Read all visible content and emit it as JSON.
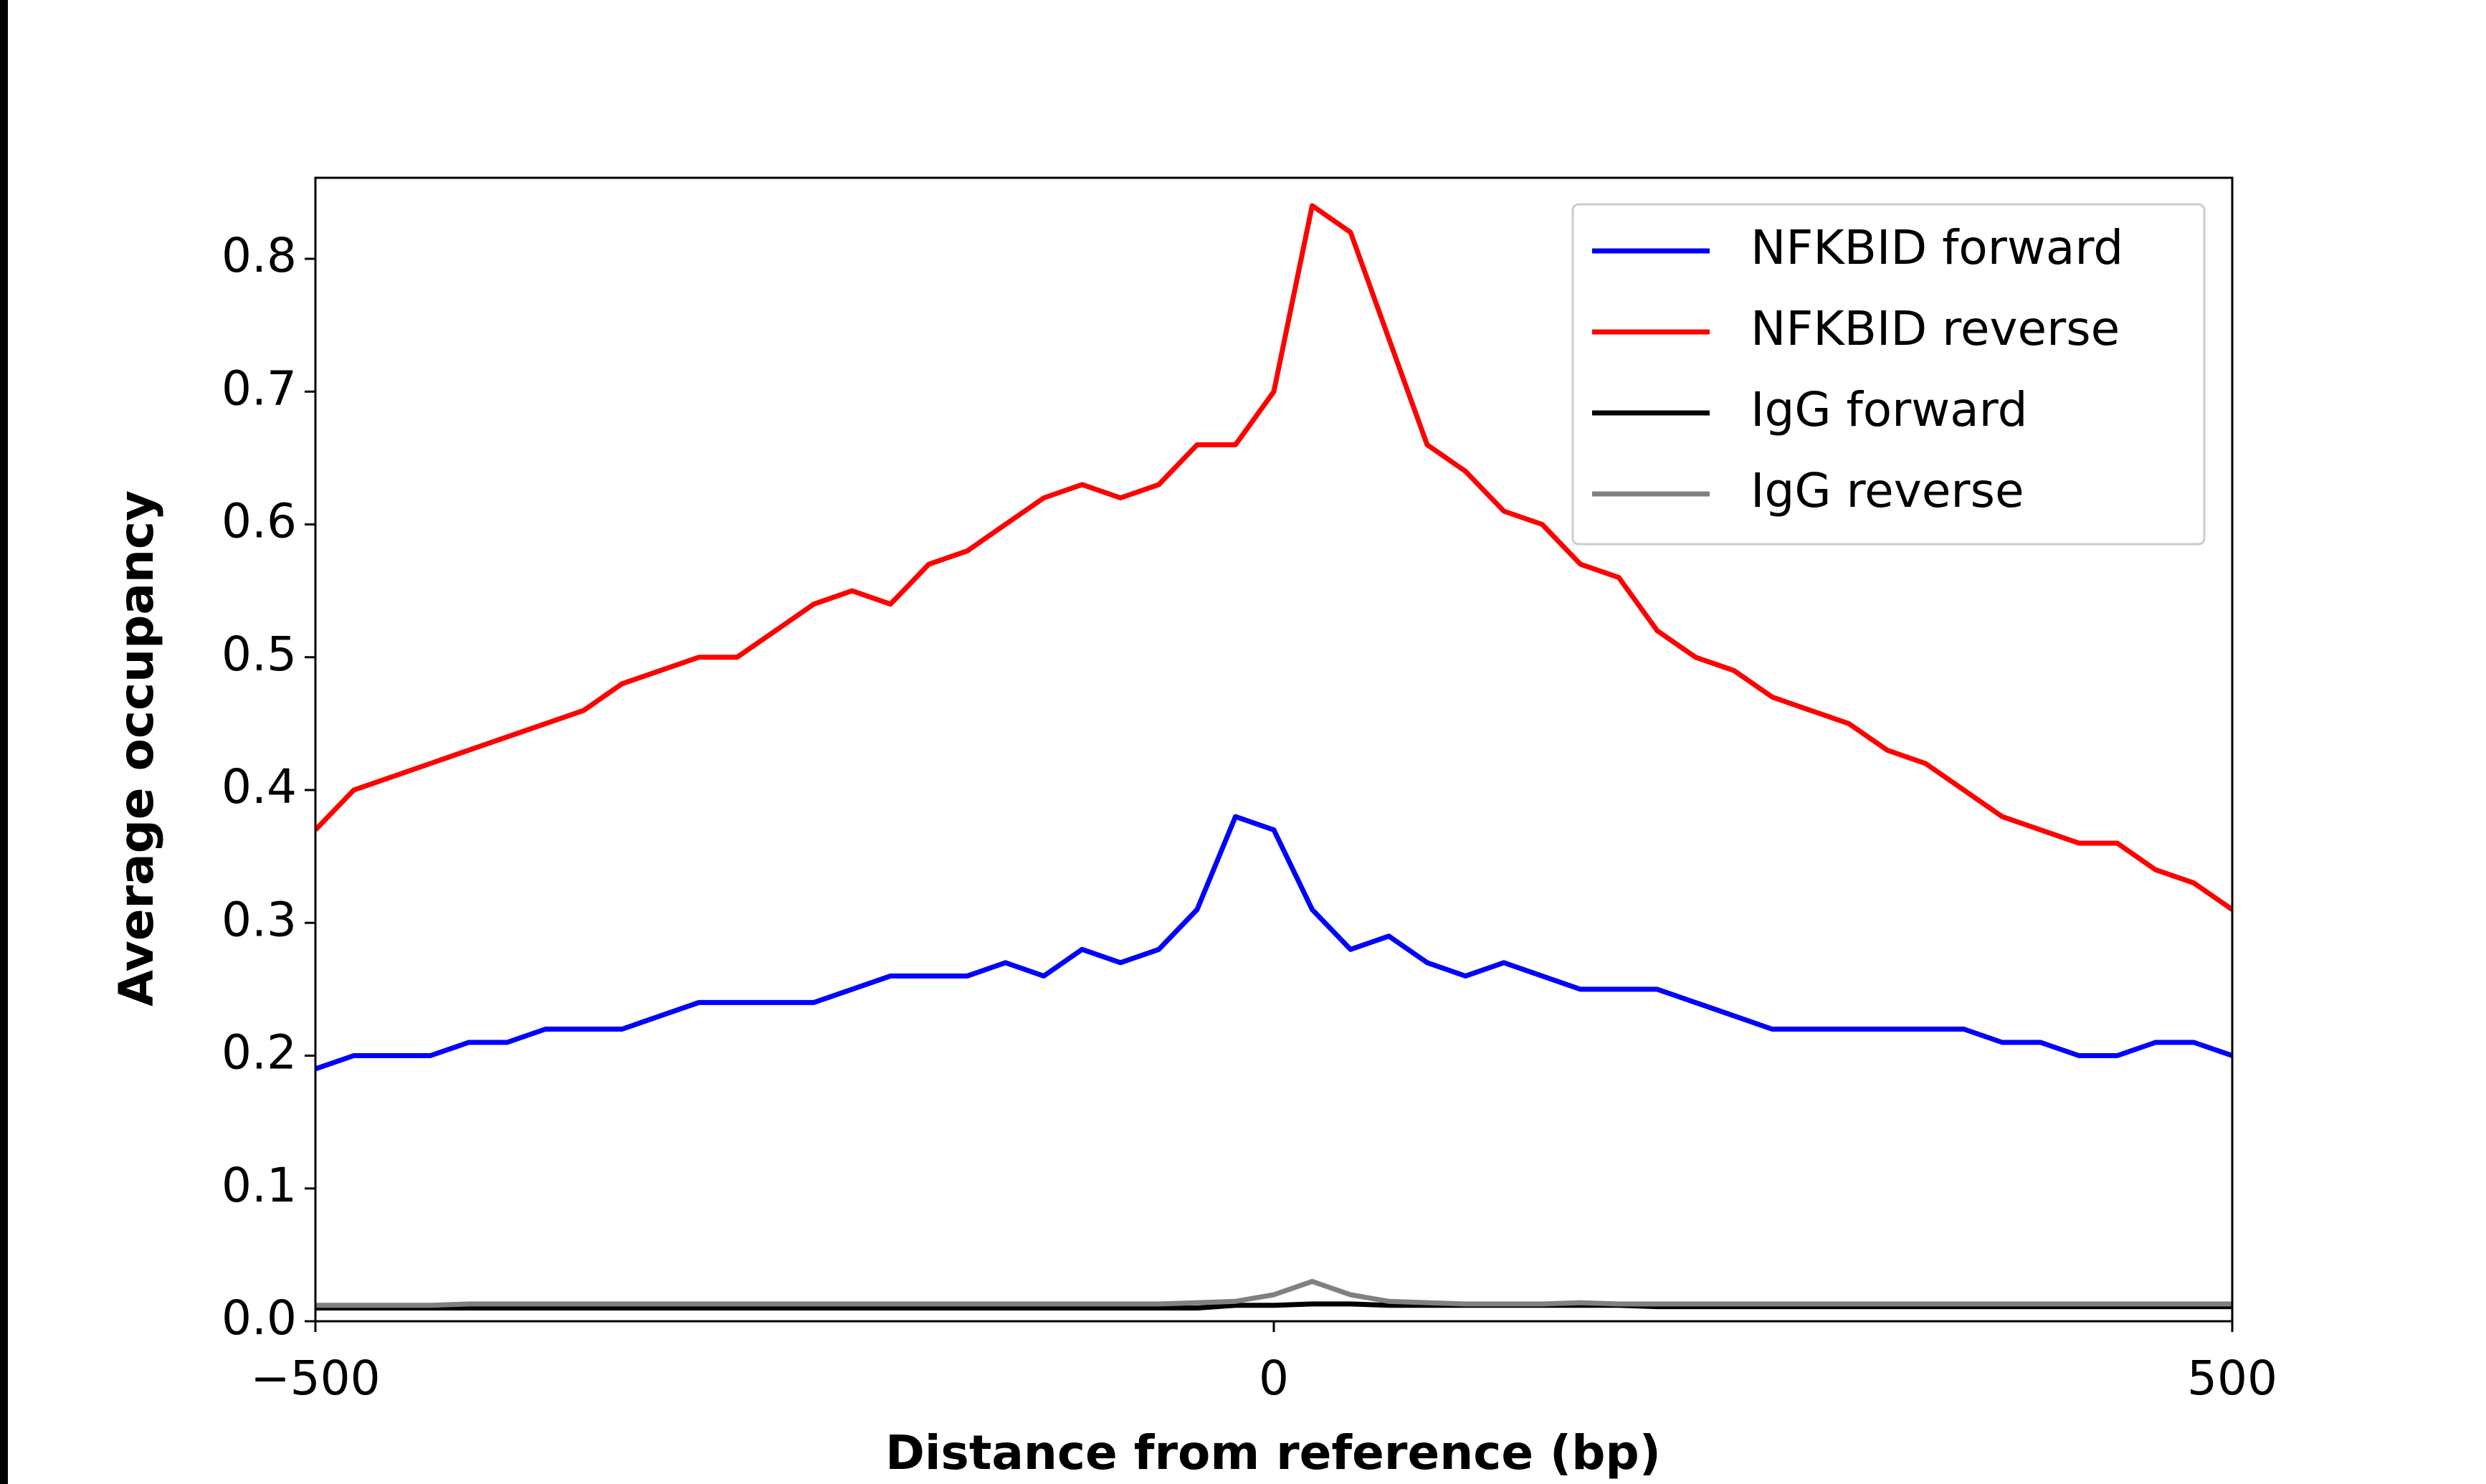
{
  "chart_data": {
    "type": "line",
    "xlabel": "Distance from reference (bp)",
    "ylabel": "Average occupancy",
    "x": [
      -500,
      -480,
      -460,
      -440,
      -420,
      -400,
      -380,
      -360,
      -340,
      -320,
      -300,
      -280,
      -260,
      -240,
      -220,
      -200,
      -180,
      -160,
      -140,
      -120,
      -100,
      -80,
      -60,
      -40,
      -20,
      0,
      20,
      40,
      60,
      80,
      100,
      120,
      140,
      160,
      180,
      200,
      220,
      240,
      260,
      280,
      300,
      320,
      340,
      360,
      380,
      400,
      420,
      440,
      460,
      480,
      500
    ],
    "series": [
      {
        "name": "NFKBID forward",
        "color": "#0000ff",
        "values": [
          0.19,
          0.2,
          0.2,
          0.2,
          0.21,
          0.21,
          0.22,
          0.22,
          0.22,
          0.23,
          0.24,
          0.24,
          0.24,
          0.24,
          0.25,
          0.26,
          0.26,
          0.26,
          0.27,
          0.26,
          0.28,
          0.27,
          0.28,
          0.31,
          0.38,
          0.37,
          0.31,
          0.28,
          0.29,
          0.27,
          0.26,
          0.27,
          0.26,
          0.25,
          0.25,
          0.25,
          0.24,
          0.23,
          0.22,
          0.22,
          0.22,
          0.22,
          0.22,
          0.22,
          0.21,
          0.21,
          0.2,
          0.2,
          0.21,
          0.21,
          0.2
        ]
      },
      {
        "name": "NFKBID reverse",
        "color": "#ff0000",
        "values": [
          0.37,
          0.4,
          0.41,
          0.42,
          0.43,
          0.44,
          0.45,
          0.46,
          0.48,
          0.49,
          0.5,
          0.5,
          0.52,
          0.54,
          0.55,
          0.54,
          0.57,
          0.58,
          0.6,
          0.62,
          0.63,
          0.62,
          0.63,
          0.66,
          0.66,
          0.7,
          0.84,
          0.82,
          0.74,
          0.66,
          0.64,
          0.61,
          0.6,
          0.57,
          0.56,
          0.52,
          0.5,
          0.49,
          0.47,
          0.46,
          0.45,
          0.43,
          0.42,
          0.4,
          0.38,
          0.37,
          0.36,
          0.36,
          0.34,
          0.33,
          0.31
        ]
      },
      {
        "name": "IgG forward",
        "color": "#000000",
        "values": [
          0.01,
          0.01,
          0.01,
          0.01,
          0.01,
          0.01,
          0.01,
          0.01,
          0.01,
          0.01,
          0.01,
          0.01,
          0.01,
          0.01,
          0.01,
          0.01,
          0.01,
          0.01,
          0.01,
          0.01,
          0.01,
          0.01,
          0.01,
          0.01,
          0.012,
          0.012,
          0.013,
          0.013,
          0.012,
          0.012,
          0.012,
          0.012,
          0.012,
          0.012,
          0.012,
          0.011,
          0.011,
          0.011,
          0.011,
          0.011,
          0.011,
          0.011,
          0.011,
          0.011,
          0.011,
          0.011,
          0.011,
          0.011,
          0.011,
          0.011,
          0.011
        ]
      },
      {
        "name": "IgG reverse",
        "color": "#808080",
        "values": [
          0.012,
          0.012,
          0.012,
          0.012,
          0.013,
          0.013,
          0.013,
          0.013,
          0.013,
          0.013,
          0.013,
          0.013,
          0.013,
          0.013,
          0.013,
          0.013,
          0.013,
          0.013,
          0.013,
          0.013,
          0.013,
          0.013,
          0.013,
          0.014,
          0.015,
          0.02,
          0.03,
          0.02,
          0.015,
          0.014,
          0.013,
          0.013,
          0.013,
          0.014,
          0.013,
          0.013,
          0.013,
          0.013,
          0.013,
          0.013,
          0.013,
          0.013,
          0.013,
          0.013,
          0.013,
          0.013,
          0.013,
          0.013,
          0.013,
          0.013,
          0.013
        ]
      }
    ],
    "xlim": [
      -500,
      500
    ],
    "ylim": [
      0,
      0.861
    ],
    "xticks": [
      {
        "value": -500,
        "label": "−500"
      },
      0,
      500
    ],
    "yticks": [
      {
        "value": 0,
        "label": "0.0"
      },
      0.1,
      0.2,
      0.3,
      0.4,
      0.5,
      0.6,
      0.7,
      0.8
    ],
    "legend": "upper right"
  }
}
